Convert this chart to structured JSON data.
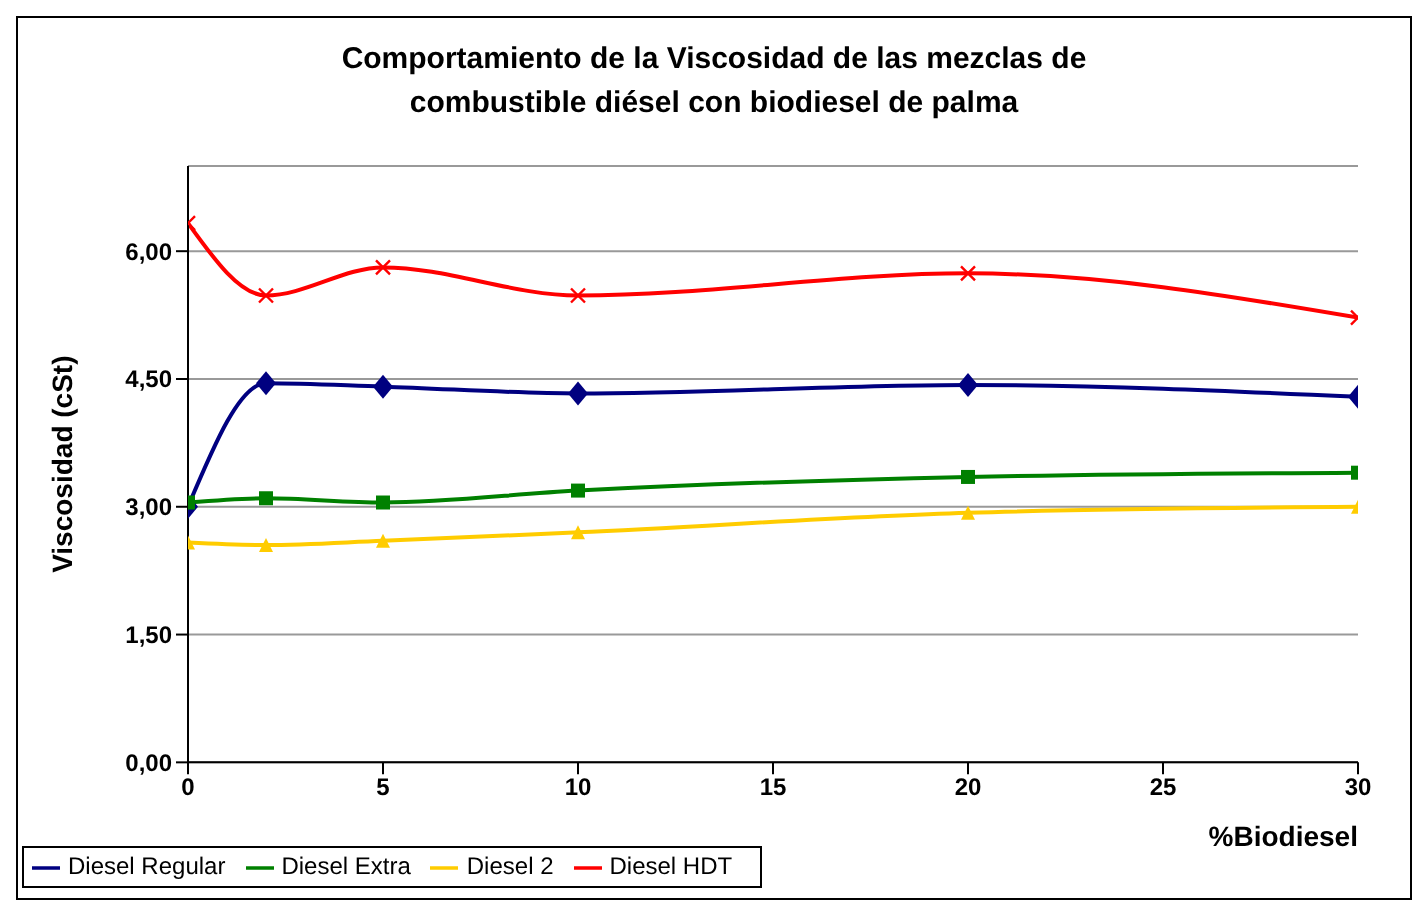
{
  "chart_data": {
    "type": "line",
    "title": "Comportamiento de la Viscosidad de las mezclas de combustible diésel con biodiesel de palma",
    "xlabel": "%Biodiesel",
    "ylabel": "Viscosidad (cSt)",
    "x": [
      0,
      2,
      5,
      10,
      20,
      30
    ],
    "series": [
      {
        "name": "Diesel Regular",
        "color": "#000080",
        "marker": "diamond",
        "values": [
          3.0,
          4.45,
          4.41,
          4.33,
          4.43,
          4.29
        ]
      },
      {
        "name": "Diesel Extra",
        "color": "#008000",
        "marker": "square",
        "values": [
          3.05,
          3.1,
          3.05,
          3.19,
          3.35,
          3.4
        ]
      },
      {
        "name": "Diesel 2",
        "color": "#ffcc00",
        "marker": "triangle",
        "values": [
          2.58,
          2.55,
          2.6,
          2.7,
          2.93,
          3.0
        ]
      },
      {
        "name": "Diesel HDT",
        "color": "#ff0000",
        "marker": "cross",
        "values": [
          6.33,
          5.48,
          5.81,
          5.48,
          5.74,
          5.22
        ]
      }
    ],
    "xlim": [
      0,
      30
    ],
    "xticks": [
      0,
      5,
      10,
      15,
      20,
      25,
      30
    ],
    "ylim": [
      0,
      7
    ],
    "yticks": [
      {
        "value": 0,
        "label": "0,00"
      },
      {
        "value": 1.5,
        "label": "1,50"
      },
      {
        "value": 3,
        "label": "3,00"
      },
      {
        "value": 4.5,
        "label": "4,50"
      },
      {
        "value": 6,
        "label": "6,00"
      }
    ],
    "grid": "y",
    "legend": "bottom left"
  }
}
